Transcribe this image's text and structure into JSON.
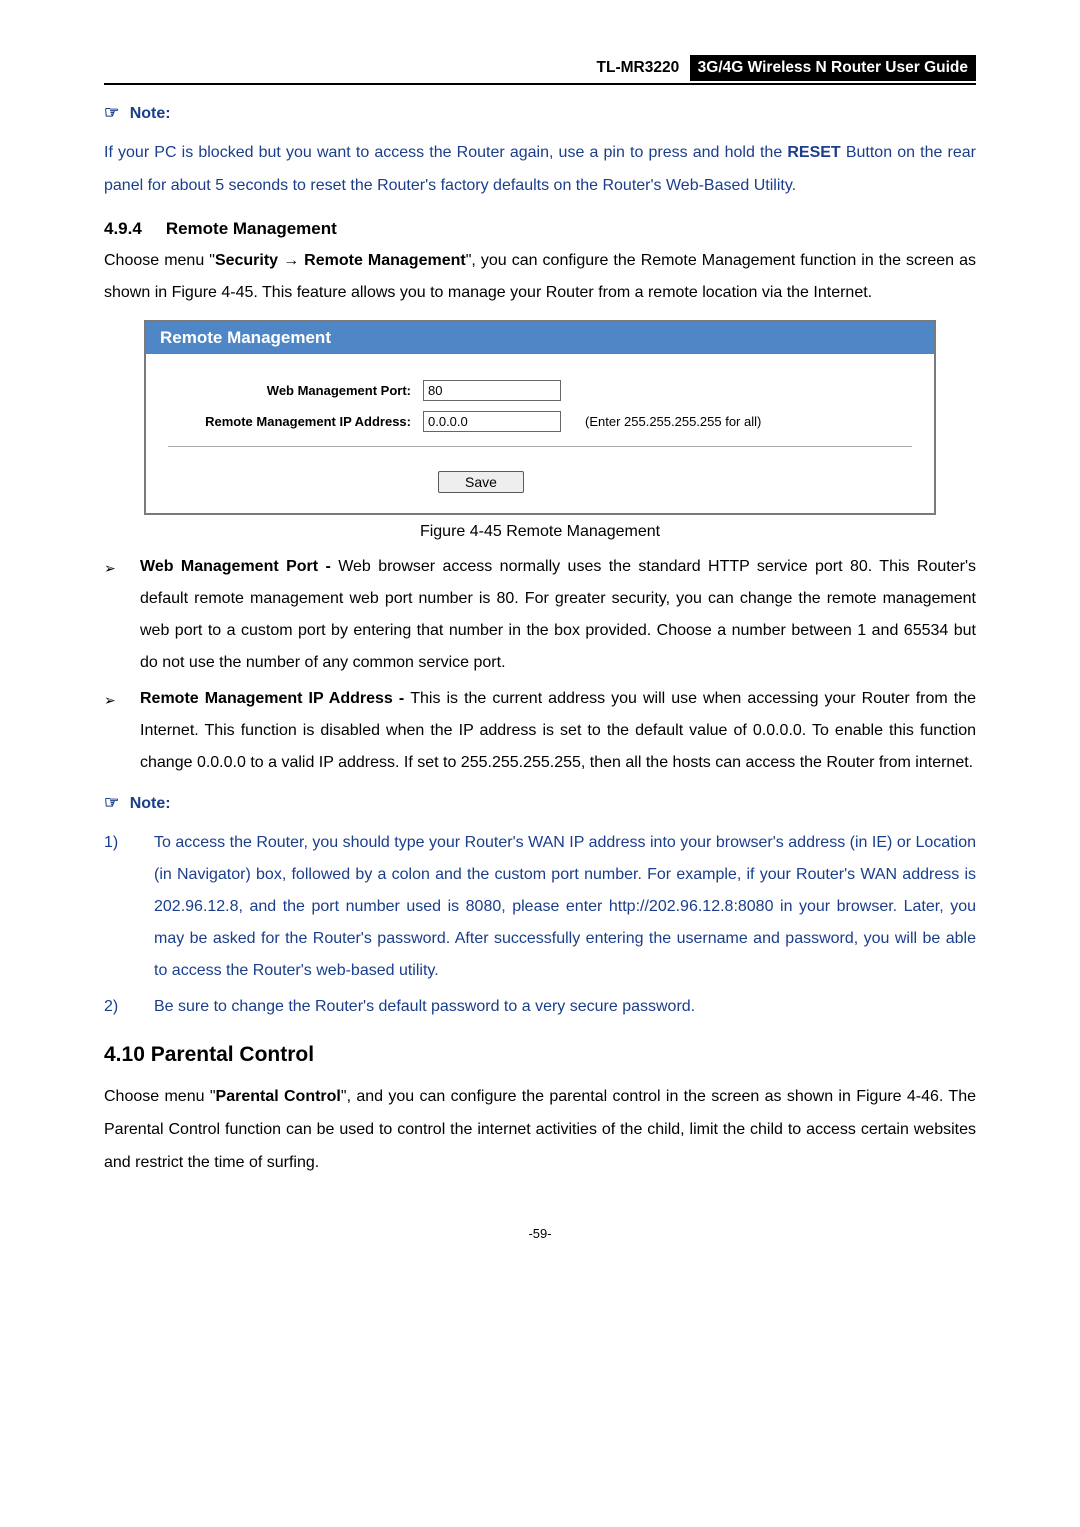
{
  "header": {
    "model": "TL-MR3220",
    "title": "3G/4G Wireless N Router User Guide"
  },
  "note1": {
    "label": "Note:",
    "hand": "☞",
    "body_prefix": "If your PC is blocked but you want to access the Router again, use a pin to press and hold the ",
    "reset": "RESET",
    "body_suffix": " Button on the rear panel for about 5 seconds to reset the Router's factory defaults on the Router's Web-Based Utility."
  },
  "section494": {
    "num": "4.9.4",
    "title": "Remote Management",
    "para_a": "Choose menu \"",
    "para_b": "Security",
    "para_arrow": " → ",
    "para_c": "Remote Management",
    "para_d": "\", you can configure the Remote Management function in the screen as shown in Figure 4-45. This feature allows you to manage your Router from a remote location via the Internet."
  },
  "figure": {
    "title": "Remote Management",
    "port_label": "Web Management Port:",
    "port_value": "80",
    "ip_label": "Remote Management IP Address:",
    "ip_value": "0.0.0.0",
    "ip_hint": "(Enter 255.255.255.255 for all)",
    "save": "Save",
    "caption": "Figure 4-45 Remote Management",
    "colors": {
      "header_bg": "#4f86c6",
      "border": "#7a7a7a"
    }
  },
  "bullets": {
    "mark": "➢",
    "b1_strong": "Web Management Port - ",
    "b1_text": "Web browser access normally uses the standard HTTP service port 80. This Router's default remote management web port number is 80. For greater security, you can change the remote management web port to a custom port by entering that number in the box provided. Choose a number between 1 and 65534 but do not use the number of any common service port.",
    "b2_strong": "Remote Management IP Address - ",
    "b2_text": "This is the current address you will use when accessing your Router from the Internet. This function is disabled when the IP address is set to the default value of 0.0.0.0. To enable this function change 0.0.0.0 to a valid IP address. If set to 255.255.255.255, then all the hosts can access the Router from internet."
  },
  "note2": {
    "label": "Note:",
    "hand": "☞",
    "n1_num": "1)",
    "n1_text": "To access the Router, you should type your Router's WAN IP address into your browser's address (in IE) or Location (in Navigator) box, followed by a colon and the custom port number. For example, if your Router's WAN address is 202.96.12.8, and the port number used is 8080, please enter http://202.96.12.8:8080 in your browser. Later, you may be asked for the Router's password. After successfully entering the username and password, you will be able to access the Router's web-based utility.",
    "n2_num": "2)",
    "n2_text": "Be sure to change the Router's default password to a very secure password."
  },
  "section410": {
    "title": "4.10 Parental Control",
    "para_a": "Choose menu \"",
    "para_b": "Parental Control",
    "para_c": "\", and you can configure the parental control in the screen as shown in Figure 4-46. The Parental Control function can be used to control the internet activities of the child, limit the child to access certain websites and restrict the time of surfing."
  },
  "page_number": "-59-",
  "colors": {
    "note_color": "#1a3e8c",
    "text_color": "#000000"
  }
}
